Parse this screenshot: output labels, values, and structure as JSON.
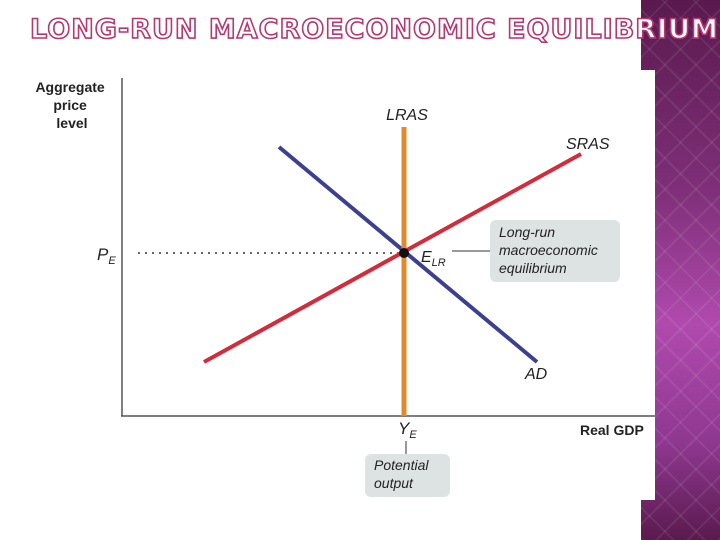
{
  "slide": {
    "title": "LONG-RUN MACROECONOMIC EQUILIBRIUM",
    "accent_color": "#b5386f",
    "side_band_color": "#7e2f78"
  },
  "diagram": {
    "y_axis_label": [
      "Aggregate",
      "price",
      "level"
    ],
    "x_axis_label": "Real GDP",
    "curves": {
      "lras": {
        "label": "LRAS",
        "color": "#e08a2e"
      },
      "sras": {
        "label": "SRAS",
        "color": "#d42a3a"
      },
      "ad": {
        "label": "AD",
        "color": "#3d3f8f"
      }
    },
    "price_level": {
      "main": "P",
      "sub": "E"
    },
    "quantity_level": {
      "main": "Y",
      "sub": "E"
    },
    "equilibrium_point": {
      "main": "E",
      "sub": "LR"
    },
    "callouts": {
      "equilibrium": [
        "Long-run",
        "macroeconomic",
        "equilibrium"
      ],
      "potential": [
        "Potential",
        "output"
      ]
    }
  }
}
